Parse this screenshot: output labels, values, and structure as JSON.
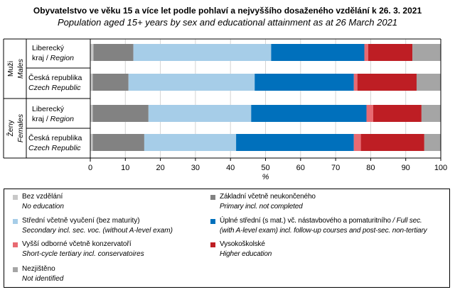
{
  "title": "Obyvatelstvo ve věku 15 a více let podle pohlaví a nejvyššího dosaženého vzdělání k 26. 3. 2021",
  "subtitle": "Population aged 15+ years by sex and educational attainment as at 26 March 2021",
  "chart_data": {
    "type": "bar",
    "orientation": "horizontal",
    "stacked": true,
    "title": "Obyvatelstvo ve věku 15 a více let podle pohlaví a nejvyššího dosaženého vzdělání k 26. 3. 2021",
    "xlabel": "%",
    "xlim": [
      0,
      100
    ],
    "xticks": [
      0,
      10,
      20,
      30,
      40,
      50,
      60,
      70,
      80,
      90,
      100
    ],
    "grid": true,
    "legend_position": "bottom",
    "groups": [
      {
        "cz": "Muži",
        "en": "Males"
      },
      {
        "cz": "Ženy",
        "en": "Females"
      }
    ],
    "categories": [
      {
        "group": 0,
        "l1": "Liberecký",
        "l2": "kraj / ",
        "l2it": "Region"
      },
      {
        "group": 0,
        "l1": "Česká republika",
        "l2": "",
        "l2it": "Czech Republic"
      },
      {
        "group": 1,
        "l1": "Liberecký",
        "l2": "kraj / ",
        "l2it": "Region"
      },
      {
        "group": 1,
        "l1": "Česká republika",
        "l2": "",
        "l2it": "Czech Republic"
      }
    ],
    "series": [
      {
        "name": "Bez vzdělání",
        "en": "No education",
        "color": "#c8c8c8",
        "values": [
          0.9,
          0.7,
          0.7,
          0.7
        ]
      },
      {
        "name": "Základní včetně neukončeného",
        "en": "Primary incl. not completed",
        "color": "#828282",
        "values": [
          11.4,
          10.2,
          15.9,
          14.7
        ]
      },
      {
        "name": "Střední včetně vyučení (bez maturity)",
        "en": "Secondary incl. sec. voc. (without A-level exam)",
        "color": "#a6cde8",
        "values": [
          39.3,
          36.0,
          29.3,
          26.2
        ]
      },
      {
        "name": "Úplné střední (s mat.) vč. nástavbového a pomaturitního",
        "en_head": "/ Full sec.",
        "en": "(with A-level exam) incl. follow-up courses and post-sec. non-tertiary",
        "color": "#0070bc",
        "values": [
          26.6,
          28.3,
          32.9,
          33.6
        ]
      },
      {
        "name": "Vyšší odborné včetně konzervatoří",
        "en": "Short-cycle tertiary incl. conservatoires",
        "color": "#e86a72",
        "values": [
          1.1,
          1.0,
          1.9,
          2.0
        ]
      },
      {
        "name": "Vysokoškolské",
        "en": "Higher education",
        "color": "#be1e24",
        "values": [
          12.6,
          16.9,
          13.8,
          18.1
        ]
      },
      {
        "name": "Nezjištěno",
        "en": "Not identified",
        "color": "#a5a5a5",
        "values": [
          8.1,
          6.9,
          5.5,
          4.7
        ]
      }
    ]
  }
}
